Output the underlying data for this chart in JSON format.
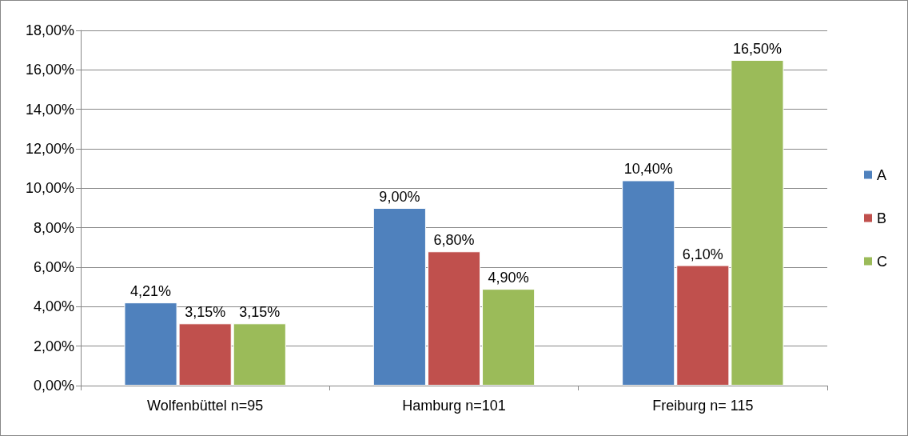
{
  "chart_data": {
    "type": "bar",
    "categories": [
      "Wolfenbüttel n=95",
      "Hamburg n=101",
      "Freiburg n= 115"
    ],
    "series": [
      {
        "name": "A",
        "color": "#4f81bd",
        "values": [
          4.21,
          9.0,
          10.4
        ],
        "value_labels": [
          "4,21%",
          "9,00%",
          "10,40%"
        ]
      },
      {
        "name": "B",
        "color": "#c0504d",
        "values": [
          3.15,
          6.8,
          6.1
        ],
        "value_labels": [
          "3,15%",
          "6,80%",
          "6,10%"
        ]
      },
      {
        "name": "C",
        "color": "#9bbb59",
        "values": [
          3.15,
          4.9,
          16.5
        ],
        "value_labels": [
          "3,15%",
          "4,90%",
          "16,50%"
        ]
      }
    ],
    "ylim": [
      0,
      18
    ],
    "yticks": [
      {
        "value": 0,
        "label": "0,00%"
      },
      {
        "value": 2,
        "label": "2,00%"
      },
      {
        "value": 4,
        "label": "4,00%"
      },
      {
        "value": 6,
        "label": "6,00%"
      },
      {
        "value": 8,
        "label": "8,00%"
      },
      {
        "value": 10,
        "label": "10,00%"
      },
      {
        "value": 12,
        "label": "12,00%"
      },
      {
        "value": 14,
        "label": "14,00%"
      },
      {
        "value": 16,
        "label": "16,00%"
      },
      {
        "value": 18,
        "label": "18,00%"
      }
    ],
    "grid": "y",
    "legend": "right"
  }
}
